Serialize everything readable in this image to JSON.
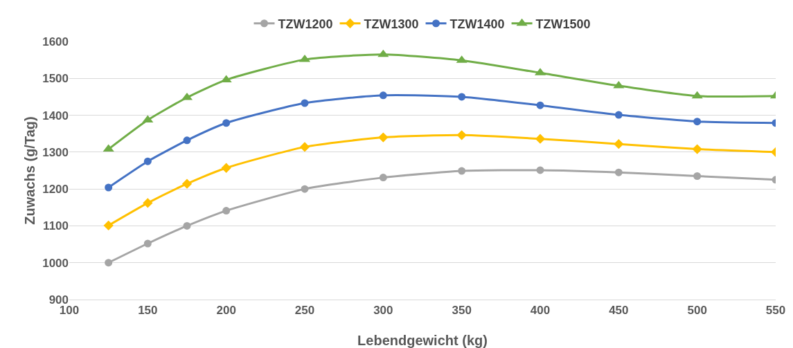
{
  "chart_data": {
    "type": "line",
    "xlabel": "Lebendgewicht (kg)",
    "ylabel": "Zuwachs (g/Tag)",
    "x": [
      125,
      150,
      175,
      200,
      250,
      300,
      350,
      400,
      450,
      500,
      550
    ],
    "xlim": [
      100,
      550
    ],
    "xticks": [
      100,
      150,
      200,
      250,
      300,
      350,
      400,
      450,
      500,
      550
    ],
    "ylim": [
      900,
      1600
    ],
    "yticks": [
      900,
      1000,
      1100,
      1200,
      1300,
      1400,
      1500,
      1600
    ],
    "grid": "y",
    "legend": "top",
    "line_style": "solid",
    "series": [
      {
        "name": "TZW1200",
        "color": "#a5a5a5",
        "marker": "circle",
        "values": [
          1000,
          1052,
          1100,
          1141,
          1200,
          1231,
          1249,
          1251,
          1245,
          1235,
          1225
        ]
      },
      {
        "name": "TZW1300",
        "color": "#ffc000",
        "marker": "diamond",
        "values": [
          1101,
          1162,
          1214,
          1257,
          1314,
          1340,
          1346,
          1336,
          1322,
          1308,
          1300
        ]
      },
      {
        "name": "TZW1400",
        "color": "#4472c4",
        "marker": "circle",
        "values": [
          1204,
          1275,
          1332,
          1379,
          1433,
          1454,
          1450,
          1427,
          1401,
          1383,
          1379
        ]
      },
      {
        "name": "TZW1500",
        "color": "#70ad47",
        "marker": "triangle",
        "values": [
          1308,
          1387,
          1448,
          1496,
          1551,
          1565,
          1549,
          1515,
          1480,
          1452,
          1452
        ]
      }
    ]
  }
}
